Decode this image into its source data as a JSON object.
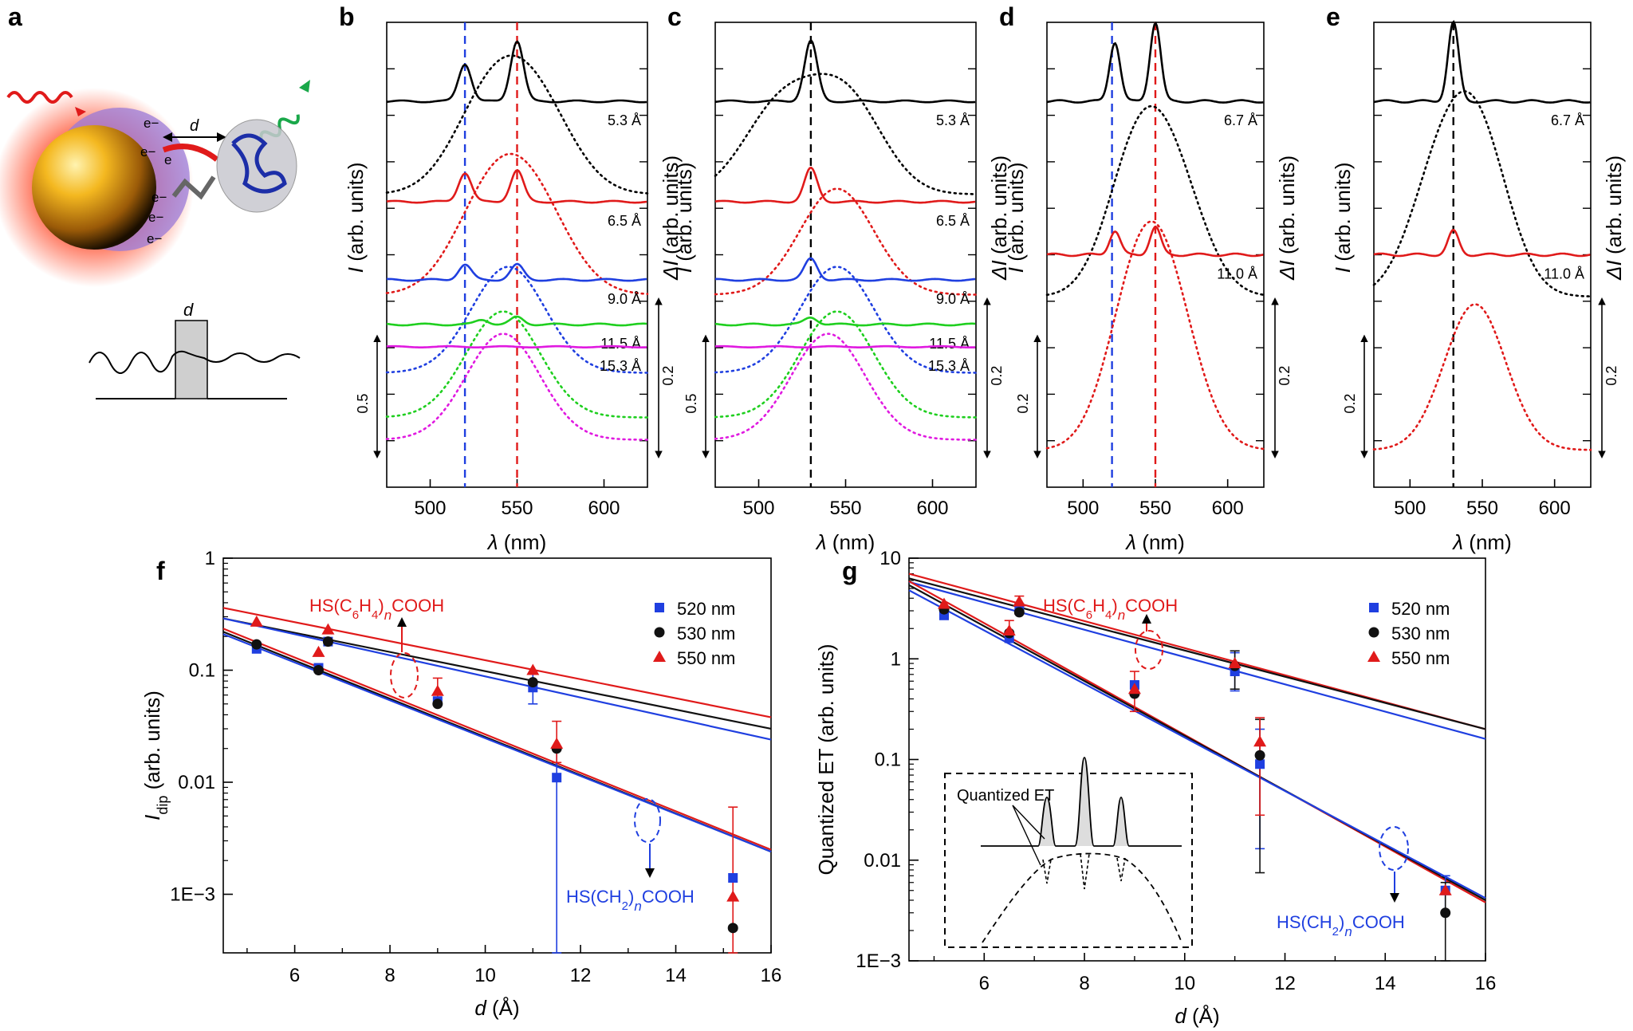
{
  "figure": {
    "panel_labels": [
      "a",
      "b",
      "c",
      "d",
      "e",
      "f",
      "g"
    ],
    "schematic": {
      "electron": "e",
      "electron_symbol": "e−",
      "distance_label": "d"
    }
  },
  "chart_data": [
    {
      "id": "b",
      "type": "line",
      "panel_label": "b",
      "xlabel_italic": "λ",
      "xlabel_unit": " (nm)",
      "ylabel_left_italic": "I",
      "ylabel_left": " (arb. units)",
      "ylabel_right_italic": "ΔI",
      "ylabel_right": " (arb. units)",
      "xlim": [
        475,
        625
      ],
      "xticks": [
        500,
        550,
        600
      ],
      "reference_lines": [
        {
          "x": 520,
          "color": "#1f3fe0"
        },
        {
          "x": 550,
          "color": "#e01a1a"
        }
      ],
      "scale_bar_left": "0.5",
      "scale_bar_right": "0.2",
      "series": [
        {
          "label": "5.3 Å",
          "color": "#000000",
          "solid_offset": 0.0,
          "peaks": [
            [
              520,
              0.62
            ],
            [
              550,
              1.0
            ]
          ],
          "dotted_peaks": [
            [
              535,
              0.82
            ],
            [
              562,
              0.7
            ]
          ]
        },
        {
          "label": "6.5 Å",
          "color": "#e01a1a",
          "solid_offset": 0.36,
          "peaks": [
            [
              520,
              0.48
            ],
            [
              550,
              0.52
            ]
          ],
          "dotted_peaks": [
            [
              535,
              0.8
            ],
            [
              560,
              0.7
            ]
          ]
        },
        {
          "label": "9.0 Å",
          "color": "#1f3fe0",
          "solid_offset": 0.64,
          "peaks": [
            [
              520,
              0.25
            ],
            [
              550,
              0.25
            ]
          ],
          "dotted_peaks": [
            [
              545,
              0.95
            ]
          ]
        },
        {
          "label": "11.5 Å",
          "color": "#1fcf1f",
          "solid_offset": 0.8,
          "peaks": [
            [
              530,
              0.08
            ],
            [
              550,
              0.12
            ]
          ],
          "dotted_peaks": [
            [
              542,
              0.95
            ]
          ]
        },
        {
          "label": "15.3 Å",
          "color": "#e01ae0",
          "solid_offset": 0.88,
          "peaks": [],
          "dotted_peaks": [
            [
              542,
              0.95
            ]
          ]
        }
      ]
    },
    {
      "id": "c",
      "type": "line",
      "panel_label": "c",
      "xlabel_italic": "λ",
      "xlabel_unit": " (nm)",
      "ylabel_left_italic": "I",
      "ylabel_left": " (arb. units)",
      "ylabel_right_italic": "ΔI",
      "ylabel_right": " (arb. units)",
      "xlim": [
        475,
        625
      ],
      "xticks": [
        500,
        550,
        600
      ],
      "reference_lines": [
        {
          "x": 530,
          "color": "#000000"
        }
      ],
      "scale_bar_left": "0.5",
      "scale_bar_right": "0.2",
      "series": [
        {
          "label": "5.3 Å",
          "color": "#000000",
          "solid_offset": 0.0,
          "peaks": [
            [
              530,
              1.0
            ]
          ],
          "dotted_peaks": [
            [
              512,
              0.75
            ],
            [
              550,
              0.85
            ]
          ]
        },
        {
          "label": "6.5 Å",
          "color": "#e01a1a",
          "solid_offset": 0.36,
          "peaks": [
            [
              530,
              0.55
            ]
          ],
          "dotted_peaks": [
            [
              545,
              0.95
            ]
          ]
        },
        {
          "label": "9.0 Å",
          "color": "#1f3fe0",
          "solid_offset": 0.64,
          "peaks": [
            [
              530,
              0.35
            ]
          ],
          "dotted_peaks": [
            [
              545,
              0.95
            ]
          ]
        },
        {
          "label": "11.5 Å",
          "color": "#1fcf1f",
          "solid_offset": 0.8,
          "peaks": [
            [
              530,
              0.12
            ]
          ],
          "dotted_peaks": [
            [
              545,
              0.95
            ]
          ]
        },
        {
          "label": "15.3 Å",
          "color": "#e01ae0",
          "solid_offset": 0.88,
          "peaks": [],
          "dotted_peaks": [
            [
              540,
              0.95
            ]
          ]
        }
      ]
    },
    {
      "id": "d",
      "type": "line",
      "panel_label": "d",
      "xlabel_italic": "λ",
      "xlabel_unit": " (nm)",
      "ylabel_left_italic": "I",
      "ylabel_left": " (arb. units)",
      "ylabel_right_italic": "ΔI",
      "ylabel_right": " (arb. units)",
      "xlim": [
        475,
        625
      ],
      "xticks": [
        500,
        550,
        600
      ],
      "reference_lines": [
        {
          "x": 520,
          "color": "#1f3fe0"
        },
        {
          "x": 550,
          "color": "#e01a1a"
        }
      ],
      "scale_bar_left": "0.2",
      "scale_bar_right": "0.2",
      "series": [
        {
          "label": "6.7 Å",
          "color": "#000000",
          "solid_offset": 0.0,
          "peaks": [
            [
              522,
              0.75
            ],
            [
              550,
              1.0
            ]
          ],
          "dotted_peaks": [
            [
              538,
              0.9
            ],
            [
              565,
              0.6
            ]
          ]
        },
        {
          "label": "11.0 Å",
          "color": "#e01a1a",
          "solid_offset": 0.55,
          "peaks": [
            [
              522,
              0.3
            ],
            [
              550,
              0.35
            ]
          ],
          "dotted_peaks": [
            [
              538,
              0.95
            ],
            [
              560,
              0.75
            ]
          ]
        }
      ]
    },
    {
      "id": "e",
      "type": "line",
      "panel_label": "e",
      "xlabel_italic": "λ",
      "xlabel_unit": " (nm)",
      "ylabel_left_italic": "I",
      "ylabel_left": " (arb. units)",
      "ylabel_right_italic": "ΔI",
      "ylabel_right": " (arb. units)",
      "xlim": [
        475,
        625
      ],
      "xticks": [
        500,
        550,
        600
      ],
      "reference_lines": [
        {
          "x": 530,
          "color": "#000000"
        }
      ],
      "scale_bar_left": "0.2",
      "scale_bar_right": "0.2",
      "series": [
        {
          "label": "6.7 Å",
          "color": "#000000",
          "solid_offset": 0.0,
          "peaks": [
            [
              530,
              1.0
            ]
          ],
          "dotted_peaks": [
            [
              520,
              0.7
            ],
            [
              548,
              0.95
            ]
          ]
        },
        {
          "label": "11.0 Å",
          "color": "#e01a1a",
          "solid_offset": 0.55,
          "peaks": [
            [
              530,
              0.3
            ]
          ],
          "dotted_peaks": [
            [
              545,
              0.95
            ]
          ]
        }
      ]
    },
    {
      "id": "f",
      "type": "scatter",
      "panel_label": "f",
      "xlabel_italic": "d",
      "xlabel_unit": " (Å)",
      "ylabel_italic": "I",
      "ylabel_sub": "dip",
      "ylabel_unit": " (arb. units)",
      "xlim": [
        4.5,
        16
      ],
      "ylim": [
        0.0003,
        1
      ],
      "yscale": "log",
      "xticks": [
        6,
        8,
        10,
        12,
        14,
        16
      ],
      "yticks": [
        {
          "v": 1,
          "label": "1"
        },
        {
          "v": 0.1,
          "label": "0.1"
        },
        {
          "v": 0.01,
          "label": "0.01"
        },
        {
          "v": 0.001,
          "label": "1E−3"
        }
      ],
      "legend": [
        "520 nm",
        "530 nm",
        "550 nm"
      ],
      "series": [
        {
          "name": "520 nm",
          "marker": "square",
          "color": "#1f3fe0",
          "points": [
            [
              5.2,
              0.155
            ],
            [
              6.5,
              0.105
            ],
            [
              6.7,
              0.18
            ],
            [
              9.0,
              0.053
            ],
            [
              11.0,
              0.07
            ],
            [
              11.5,
              0.011
            ],
            [
              15.2,
              0.0014
            ]
          ],
          "errors": [
            [
              11.0,
              0.05,
              0.095
            ],
            [
              11.5,
              0.0003,
              0.02
            ]
          ]
        },
        {
          "name": "530 nm",
          "marker": "circle",
          "color": "#111111",
          "points": [
            [
              5.2,
              0.17
            ],
            [
              6.5,
              0.1
            ],
            [
              6.7,
              0.18
            ],
            [
              9.0,
              0.05
            ],
            [
              11.0,
              0.078
            ],
            [
              11.5,
              0.02
            ],
            [
              15.2,
              0.0005
            ]
          ],
          "errors": []
        },
        {
          "name": "550 nm",
          "marker": "triangle",
          "color": "#e01a1a",
          "points": [
            [
              5.2,
              0.27
            ],
            [
              6.5,
              0.145
            ],
            [
              6.7,
              0.23
            ],
            [
              9.0,
              0.065
            ],
            [
              11.0,
              0.1
            ],
            [
              11.5,
              0.022
            ],
            [
              15.2,
              0.00095
            ]
          ],
          "errors": [
            [
              9.0,
              0.05,
              0.085
            ],
            [
              11.5,
              0.015,
              0.035
            ],
            [
              15.2,
              0.0003,
              0.006
            ]
          ]
        }
      ],
      "fits": [
        {
          "color": "#e01a1a",
          "from": [
            4.5,
            0.36
          ],
          "to": [
            16,
            0.038
          ]
        },
        {
          "color": "#111111",
          "from": [
            4.5,
            0.29
          ],
          "to": [
            16,
            0.03
          ]
        },
        {
          "color": "#1f3fe0",
          "from": [
            4.5,
            0.29
          ],
          "to": [
            16,
            0.024
          ]
        },
        {
          "color": "#e01a1a",
          "from": [
            4.5,
            0.235
          ],
          "to": [
            16,
            0.0025
          ]
        },
        {
          "color": "#111111",
          "from": [
            4.5,
            0.22
          ],
          "to": [
            16,
            0.0024
          ]
        },
        {
          "color": "#1f3fe0",
          "from": [
            4.5,
            0.21
          ],
          "to": [
            16,
            0.0024
          ]
        }
      ],
      "annotations": [
        {
          "text_pre": "HS(C",
          "sub1": "6",
          "text_mid": "H",
          "sub2": "4",
          "text_post": ")",
          "italic": "n",
          "tail": "COOH",
          "color": "#e01a1a"
        },
        {
          "text_pre": "HS(CH",
          "sub1": "2",
          "text_post": ")",
          "italic": "n",
          "tail": "COOH",
          "color": "#1f3fe0"
        }
      ]
    },
    {
      "id": "g",
      "type": "scatter",
      "panel_label": "g",
      "xlabel_italic": "d",
      "xlabel_unit": " (Å)",
      "ylabel": "Quantized ET (arb. units)",
      "xlim": [
        4.5,
        16
      ],
      "ylim": [
        0.001,
        10
      ],
      "yscale": "log",
      "xticks": [
        6,
        8,
        10,
        12,
        14,
        16
      ],
      "yticks": [
        {
          "v": 10,
          "label": "10"
        },
        {
          "v": 1,
          "label": "1"
        },
        {
          "v": 0.1,
          "label": "0.1"
        },
        {
          "v": 0.01,
          "label": "0.01"
        },
        {
          "v": 0.001,
          "label": "1E−3"
        }
      ],
      "legend": [
        "520 nm",
        "530 nm",
        "550 nm"
      ],
      "inset_label": "Quantized ET",
      "series": [
        {
          "name": "520 nm",
          "marker": "square",
          "color": "#1f3fe0",
          "points": [
            [
              5.2,
              2.7
            ],
            [
              6.5,
              1.6
            ],
            [
              6.7,
              3.2
            ],
            [
              9.0,
              0.55
            ],
            [
              11.0,
              0.75
            ],
            [
              11.5,
              0.09
            ],
            [
              15.2,
              0.005
            ]
          ],
          "errors": [
            [
              11.0,
              0.48,
              1.15
            ],
            [
              11.5,
              0.013,
              0.2
            ],
            [
              15.2,
              0.003,
              0.007
            ]
          ]
        },
        {
          "name": "530 nm",
          "marker": "circle",
          "color": "#111111",
          "points": [
            [
              5.2,
              3.1
            ],
            [
              6.5,
              1.8
            ],
            [
              6.7,
              2.9
            ],
            [
              9.0,
              0.45
            ],
            [
              11.0,
              0.85
            ],
            [
              11.5,
              0.11
            ],
            [
              15.2,
              0.003
            ]
          ],
          "errors": [
            [
              11.0,
              0.5,
              1.2
            ],
            [
              11.5,
              0.0075,
              0.25
            ],
            [
              15.2,
              0.001,
              0.006
            ]
          ]
        },
        {
          "name": "550 nm",
          "marker": "triangle",
          "color": "#e01a1a",
          "points": [
            [
              5.2,
              3.5
            ],
            [
              6.5,
              1.9
            ],
            [
              6.7,
              3.7
            ],
            [
              9.0,
              0.5
            ],
            [
              11.0,
              0.9
            ],
            [
              11.5,
              0.15
            ],
            [
              15.2,
              0.005
            ]
          ],
          "errors": [
            [
              6.5,
              1.5,
              2.4
            ],
            [
              6.7,
              2.8,
              4.2
            ],
            [
              9.0,
              0.3,
              0.75
            ],
            [
              11.5,
              0.028,
              0.26
            ]
          ]
        }
      ],
      "fits": [
        {
          "color": "#e01a1a",
          "from": [
            4.5,
            7.0
          ],
          "to": [
            16,
            0.2
          ]
        },
        {
          "color": "#111111",
          "from": [
            4.5,
            6.3
          ],
          "to": [
            16,
            0.2
          ]
        },
        {
          "color": "#1f3fe0",
          "from": [
            4.5,
            5.8
          ],
          "to": [
            16,
            0.16
          ]
        },
        {
          "color": "#e01a1a",
          "from": [
            4.5,
            5.9
          ],
          "to": [
            16,
            0.0038
          ]
        },
        {
          "color": "#111111",
          "from": [
            4.5,
            5.4
          ],
          "to": [
            16,
            0.004
          ]
        },
        {
          "color": "#1f3fe0",
          "from": [
            4.5,
            4.8
          ],
          "to": [
            16,
            0.0042
          ]
        }
      ],
      "annotations": [
        {
          "text_pre": "HS(C",
          "sub1": "6",
          "text_mid": "H",
          "sub2": "4",
          "text_post": ")",
          "italic": "n",
          "tail": "COOH",
          "color": "#e01a1a"
        },
        {
          "text_pre": "HS(CH",
          "sub1": "2",
          "text_post": ")",
          "italic": "n",
          "tail": "COOH",
          "color": "#1f3fe0"
        }
      ]
    }
  ]
}
